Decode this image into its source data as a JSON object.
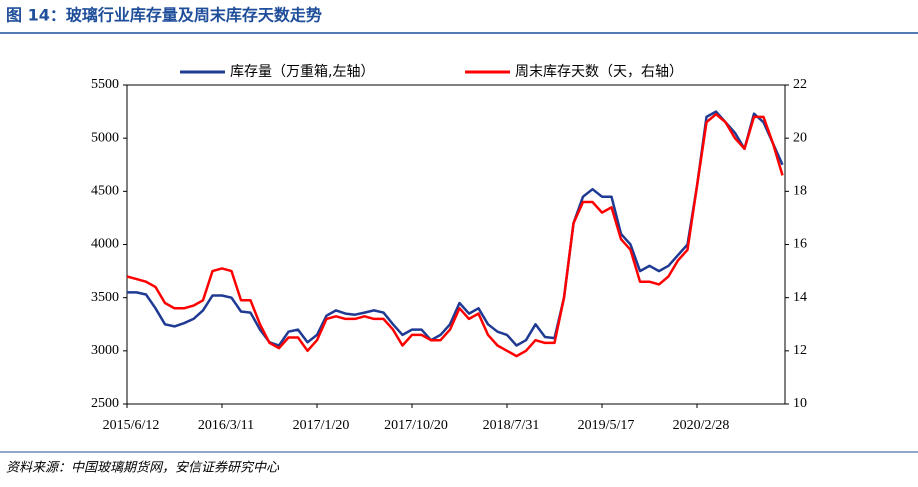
{
  "chart_data": {
    "type": "line",
    "title": "图 14：玻璃行业库存量及周末库存天数走势",
    "source": "资料来源：中国玻璃期货网，安信证券研究中心",
    "categories": [
      "2015/6/12",
      null,
      null,
      null,
      null,
      null,
      null,
      null,
      null,
      null,
      "2016/3/11",
      null,
      null,
      null,
      null,
      null,
      null,
      null,
      null,
      null,
      "2017/1/20",
      null,
      null,
      null,
      null,
      null,
      null,
      null,
      null,
      null,
      "2017/10/20",
      null,
      null,
      null,
      null,
      null,
      null,
      null,
      null,
      null,
      "2018/7/31",
      null,
      null,
      null,
      null,
      null,
      null,
      null,
      null,
      null,
      "2019/5/17",
      null,
      null,
      null,
      null,
      null,
      null,
      null,
      null,
      null,
      "2020/2/28",
      null,
      null,
      null,
      null,
      null,
      null,
      null,
      null,
      null
    ],
    "series": [
      {
        "name": "库存量（万重箱,左轴）",
        "color": "#1f3a93",
        "axis": "y",
        "values": [
          3550,
          3550,
          3530,
          3400,
          3250,
          3230,
          3260,
          3300,
          3380,
          3520,
          3520,
          3500,
          3370,
          3360,
          3200,
          3080,
          3050,
          3180,
          3200,
          3080,
          3150,
          3330,
          3380,
          3350,
          3340,
          3360,
          3380,
          3360,
          3250,
          3150,
          3200,
          3200,
          3100,
          3150,
          3250,
          3450,
          3350,
          3400,
          3250,
          3180,
          3150,
          3050,
          3100,
          3250,
          3130,
          3120,
          3500,
          4200,
          4450,
          4520,
          4450,
          4450,
          4100,
          4000,
          3750,
          3800,
          3750,
          3800,
          3900,
          4000,
          4550,
          5200,
          5250,
          5150,
          5050,
          4900,
          5230,
          5150,
          4950,
          4750
        ]
      },
      {
        "name": "周末库存天数（天，右轴）",
        "color": "#ff0000",
        "axis": "y2",
        "values": [
          14.8,
          14.7,
          14.6,
          14.4,
          13.8,
          13.6,
          13.6,
          13.7,
          13.9,
          15.0,
          15.1,
          15.0,
          13.9,
          13.9,
          13.0,
          12.3,
          12.1,
          12.5,
          12.5,
          12.0,
          12.4,
          13.2,
          13.3,
          13.2,
          13.2,
          13.3,
          13.2,
          13.2,
          12.8,
          12.2,
          12.6,
          12.6,
          12.4,
          12.4,
          12.8,
          13.6,
          13.2,
          13.4,
          12.6,
          12.2,
          12.0,
          11.8,
          12.0,
          12.4,
          12.3,
          12.3,
          14.0,
          16.8,
          17.6,
          17.6,
          17.2,
          17.4,
          16.2,
          15.8,
          14.6,
          14.6,
          14.5,
          14.8,
          15.4,
          15.8,
          18.2,
          20.6,
          20.9,
          20.6,
          20.0,
          19.6,
          20.8,
          20.8,
          19.8,
          18.6
        ]
      }
    ],
    "ylim": [
      2500,
      5500
    ],
    "yticks": [
      2500,
      3000,
      3500,
      4000,
      4500,
      5000,
      5500
    ],
    "y2lim": [
      10,
      22
    ],
    "y2ticks": [
      10,
      12,
      14,
      16,
      18,
      20,
      22
    ],
    "legend": "top",
    "grid": false
  }
}
